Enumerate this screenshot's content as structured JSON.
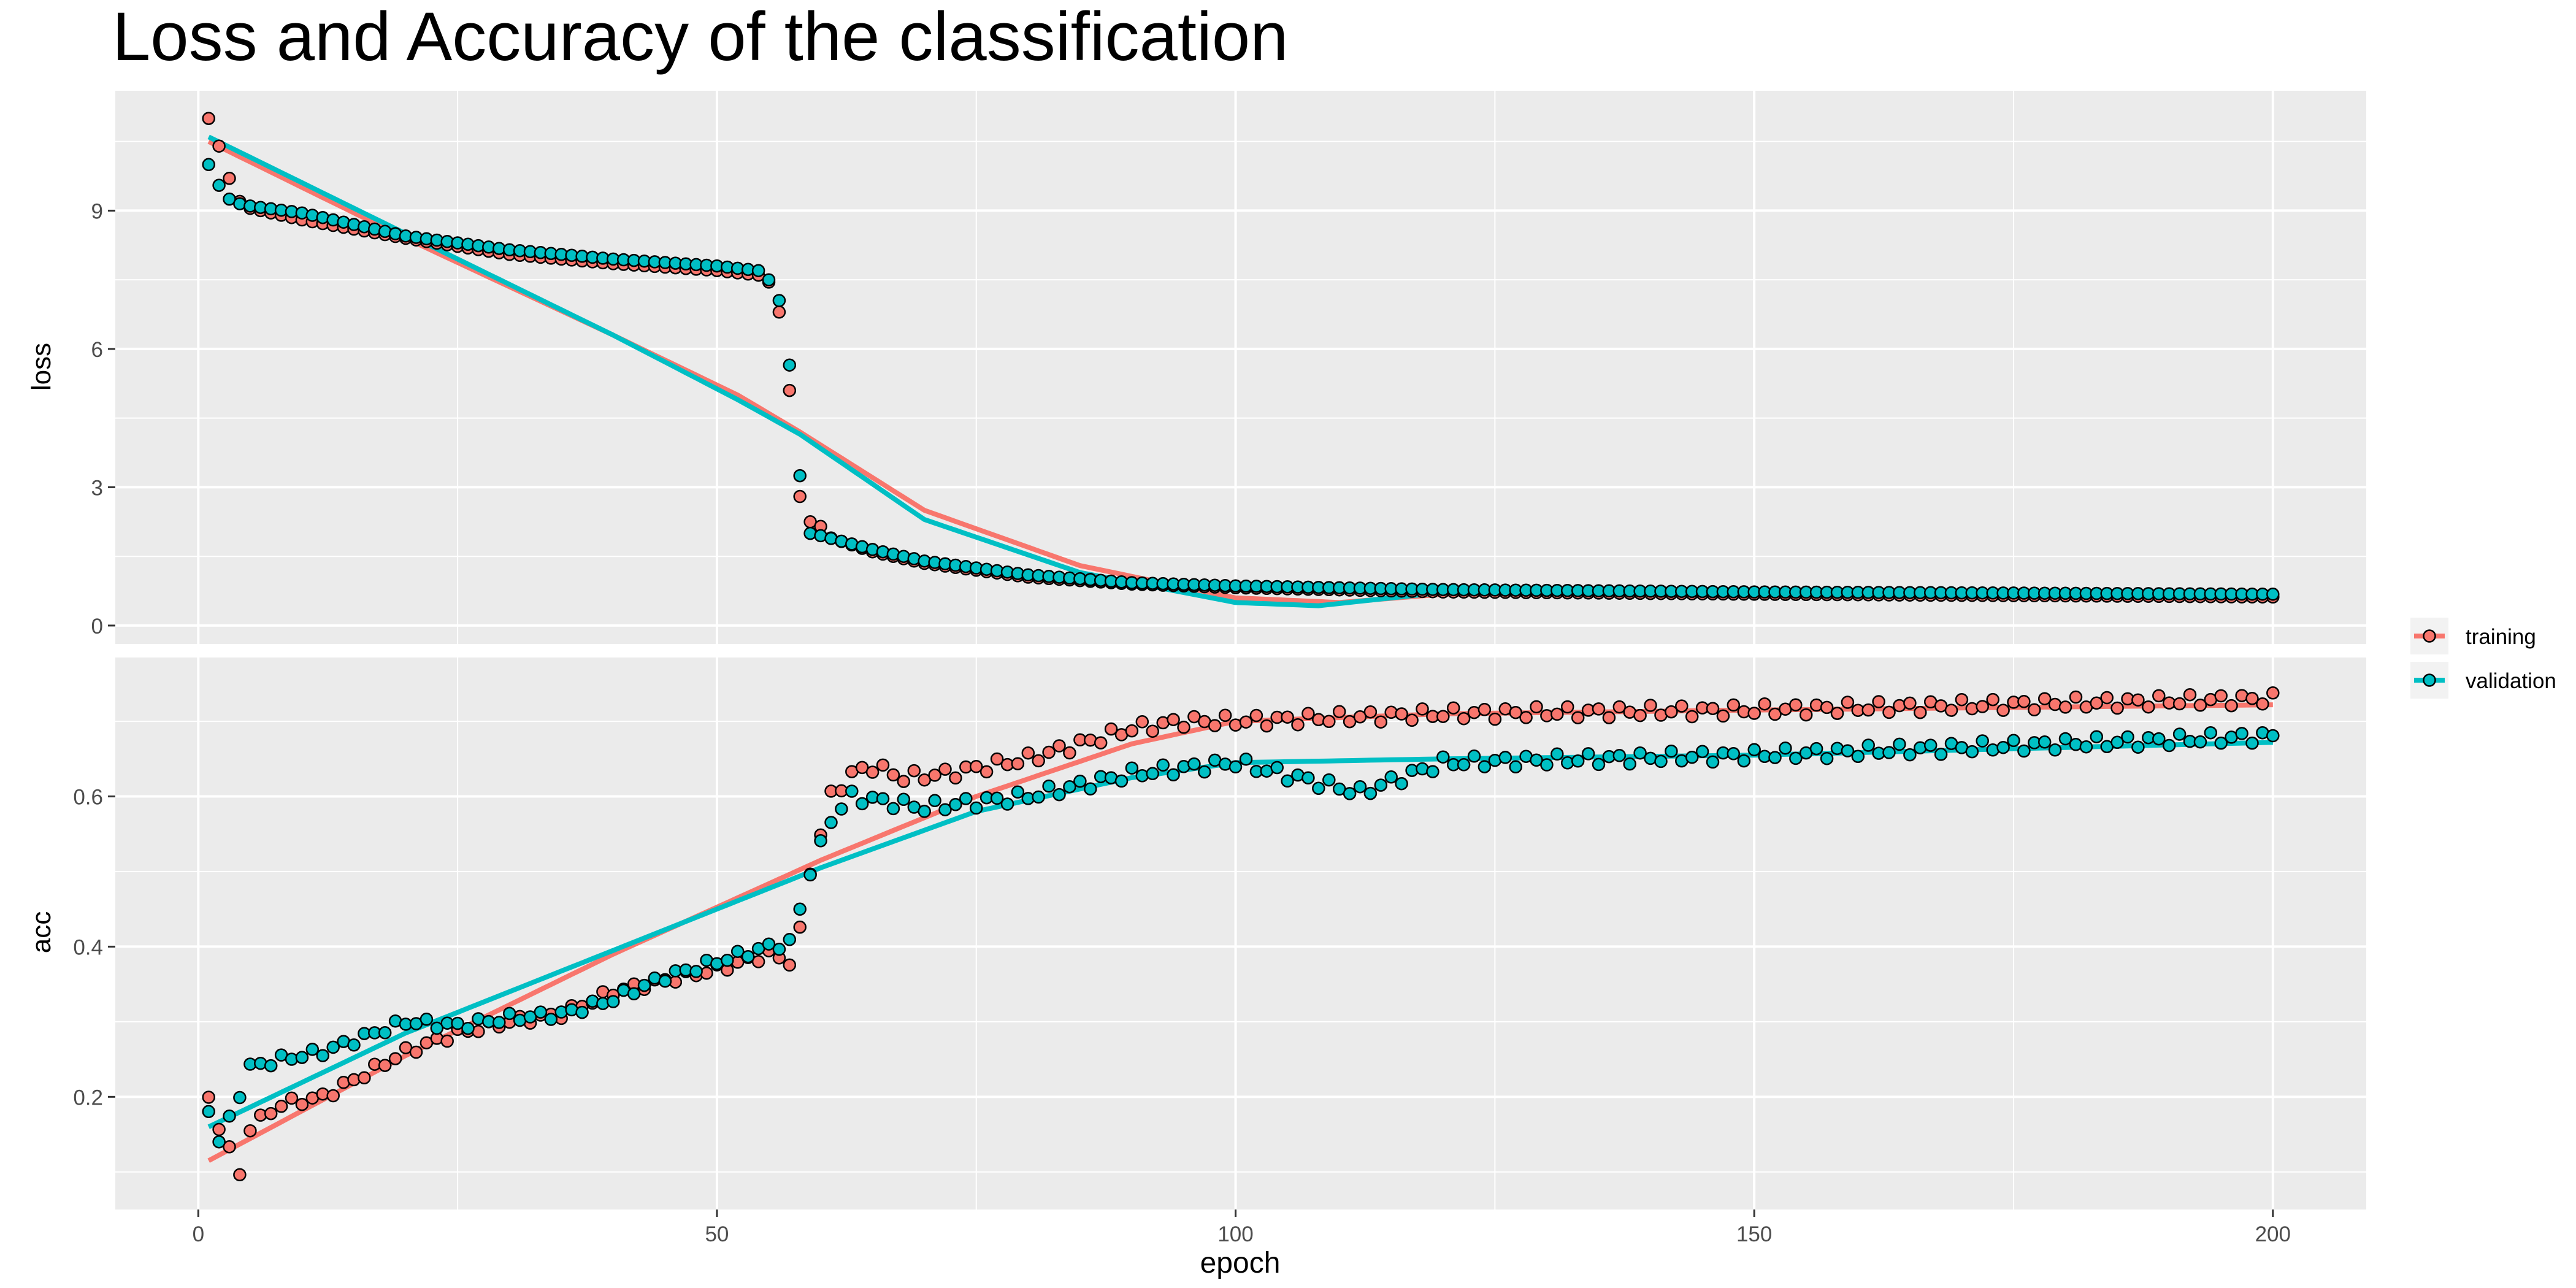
{
  "chart_data": {
    "type": "scatter",
    "title": "Loss and Accuracy of the classification",
    "xlabel": "epoch",
    "xlim": [
      -8,
      209
    ],
    "xticks": [
      0,
      50,
      100,
      150,
      200
    ],
    "smoothing": "loess trend line per series",
    "grid": true,
    "legend_position": "right",
    "colors": {
      "training": "#F8766D",
      "validation": "#00BFC4",
      "panel": "#EBEBEB",
      "grid": "#FFFFFF"
    },
    "legend": [
      "training",
      "validation"
    ],
    "panels": [
      {
        "metric": "loss",
        "ylabel": "loss",
        "ylim": [
          -0.4,
          11.6
        ],
        "yticks": [
          0,
          3,
          6,
          9
        ],
        "series": [
          {
            "name": "training",
            "anchors": [
              [
                1,
                11.0
              ],
              [
                2,
                10.4
              ],
              [
                3,
                9.7
              ],
              [
                4,
                9.2
              ],
              [
                5,
                9.05
              ],
              [
                10,
                8.8
              ],
              [
                20,
                8.4
              ],
              [
                30,
                8.05
              ],
              [
                40,
                7.85
              ],
              [
                50,
                7.7
              ],
              [
                54,
                7.6
              ],
              [
                55,
                7.45
              ],
              [
                56,
                6.8
              ],
              [
                57,
                5.1
              ],
              [
                58,
                2.8
              ],
              [
                59,
                2.25
              ],
              [
                60,
                2.15
              ],
              [
                61,
                1.9
              ],
              [
                65,
                1.6
              ],
              [
                70,
                1.35
              ],
              [
                80,
                1.05
              ],
              [
                90,
                0.9
              ],
              [
                100,
                0.82
              ],
              [
                120,
                0.73
              ],
              [
                150,
                0.68
              ],
              [
                200,
                0.62
              ]
            ],
            "trend": [
              [
                1,
                10.5
              ],
              [
                20,
                8.4
              ],
              [
                40,
                6.3
              ],
              [
                52,
                5.0
              ],
              [
                58,
                4.2
              ],
              [
                70,
                2.5
              ],
              [
                85,
                1.3
              ],
              [
                100,
                0.6
              ],
              [
                110,
                0.5
              ],
              [
                120,
                0.68
              ],
              [
                150,
                0.7
              ],
              [
                200,
                0.7
              ]
            ]
          },
          {
            "name": "validation",
            "anchors": [
              [
                1,
                10.0
              ],
              [
                2,
                9.55
              ],
              [
                3,
                9.25
              ],
              [
                4,
                9.15
              ],
              [
                5,
                9.1
              ],
              [
                10,
                8.95
              ],
              [
                20,
                8.45
              ],
              [
                30,
                8.15
              ],
              [
                40,
                7.95
              ],
              [
                50,
                7.8
              ],
              [
                54,
                7.7
              ],
              [
                55,
                7.5
              ],
              [
                56,
                7.05
              ],
              [
                57,
                5.65
              ],
              [
                58,
                3.25
              ],
              [
                59,
                2.0
              ],
              [
                60,
                1.95
              ],
              [
                65,
                1.65
              ],
              [
                70,
                1.4
              ],
              [
                80,
                1.1
              ],
              [
                90,
                0.93
              ],
              [
                100,
                0.86
              ],
              [
                120,
                0.78
              ],
              [
                150,
                0.73
              ],
              [
                200,
                0.68
              ]
            ],
            "trend": [
              [
                1,
                10.6
              ],
              [
                20,
                8.5
              ],
              [
                40,
                6.3
              ],
              [
                52,
                4.9
              ],
              [
                58,
                4.15
              ],
              [
                70,
                2.3
              ],
              [
                85,
                1.15
              ],
              [
                100,
                0.5
              ],
              [
                108,
                0.43
              ],
              [
                120,
                0.72
              ],
              [
                150,
                0.75
              ],
              [
                200,
                0.72
              ]
            ]
          }
        ]
      },
      {
        "metric": "acc",
        "ylabel": "acc",
        "ylim": [
          0.05,
          0.785
        ],
        "yticks": [
          0.2,
          0.4,
          0.6
        ],
        "series": [
          {
            "name": "training",
            "anchors": [
              [
                1,
                0.195
              ],
              [
                3,
                0.13
              ],
              [
                4,
                0.095
              ],
              [
                5,
                0.16
              ],
              [
                8,
                0.19
              ],
              [
                12,
                0.2
              ],
              [
                16,
                0.23
              ],
              [
                20,
                0.26
              ],
              [
                25,
                0.285
              ],
              [
                30,
                0.3
              ],
              [
                35,
                0.31
              ],
              [
                40,
                0.34
              ],
              [
                45,
                0.355
              ],
              [
                50,
                0.37
              ],
              [
                55,
                0.39
              ],
              [
                57,
                0.38
              ],
              [
                58,
                0.42
              ],
              [
                59,
                0.5
              ],
              [
                60,
                0.55
              ],
              [
                61,
                0.6
              ],
              [
                63,
                0.63
              ],
              [
                65,
                0.64
              ],
              [
                68,
                0.625
              ],
              [
                72,
                0.63
              ],
              [
                80,
                0.65
              ],
              [
                85,
                0.67
              ],
              [
                90,
                0.69
              ],
              [
                95,
                0.7
              ],
              [
                100,
                0.7
              ],
              [
                120,
                0.71
              ],
              [
                150,
                0.715
              ],
              [
                200,
                0.73
              ]
            ],
            "trend": [
              [
                1,
                0.115
              ],
              [
                20,
                0.255
              ],
              [
                40,
                0.39
              ],
              [
                60,
                0.515
              ],
              [
                75,
                0.6
              ],
              [
                90,
                0.67
              ],
              [
                100,
                0.7
              ],
              [
                120,
                0.71
              ],
              [
                150,
                0.715
              ],
              [
                200,
                0.722
              ]
            ]
          },
          {
            "name": "validation",
            "anchors": [
              [
                1,
                0.185
              ],
              [
                2,
                0.14
              ],
              [
                3,
                0.17
              ],
              [
                5,
                0.24
              ],
              [
                8,
                0.25
              ],
              [
                12,
                0.26
              ],
              [
                16,
                0.28
              ],
              [
                20,
                0.3
              ],
              [
                25,
                0.295
              ],
              [
                30,
                0.305
              ],
              [
                35,
                0.31
              ],
              [
                40,
                0.33
              ],
              [
                45,
                0.36
              ],
              [
                50,
                0.38
              ],
              [
                55,
                0.4
              ],
              [
                57,
                0.405
              ],
              [
                58,
                0.45
              ],
              [
                59,
                0.5
              ],
              [
                61,
                0.57
              ],
              [
                63,
                0.6
              ],
              [
                70,
                0.585
              ],
              [
                80,
                0.6
              ],
              [
                90,
                0.63
              ],
              [
                100,
                0.645
              ],
              [
                112,
                0.605
              ],
              [
                120,
                0.645
              ],
              [
                150,
                0.655
              ],
              [
                200,
                0.68
              ]
            ],
            "trend": [
              [
                1,
                0.16
              ],
              [
                20,
                0.285
              ],
              [
                40,
                0.395
              ],
              [
                60,
                0.505
              ],
              [
                75,
                0.58
              ],
              [
                90,
                0.625
              ],
              [
                100,
                0.645
              ],
              [
                120,
                0.65
              ],
              [
                150,
                0.655
              ],
              [
                200,
                0.672
              ]
            ]
          }
        ]
      }
    ]
  }
}
